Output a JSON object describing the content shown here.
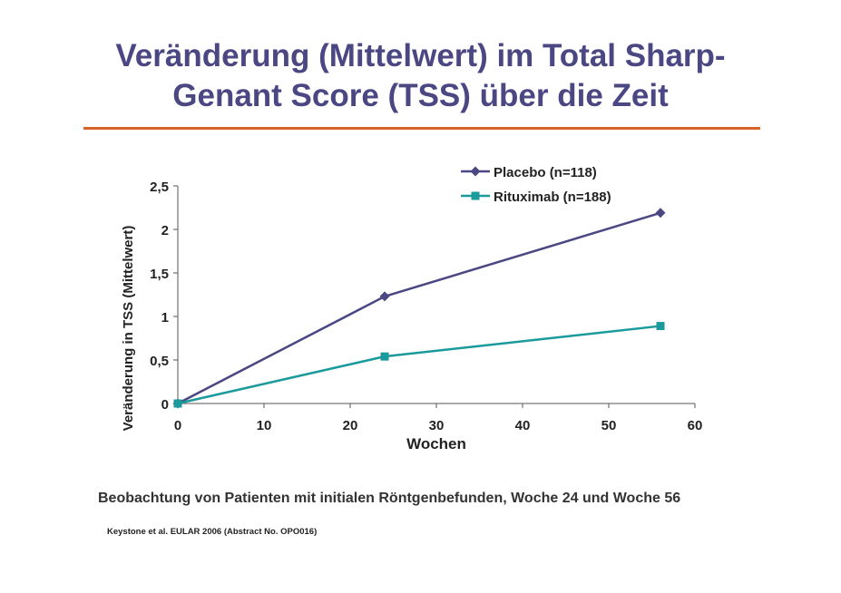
{
  "title": {
    "line1": "Veränderung (Mittelwert) im Total Sharp-",
    "line2": "Genant Score (TSS) über die Zeit"
  },
  "colors": {
    "title": "#4b4783",
    "rule": "#d9622b",
    "placebo": "#4b4783",
    "rituximab": "#1a9a9a"
  },
  "chart_data": {
    "type": "line",
    "title": "",
    "xlabel": "Wochen",
    "ylabel": "Veränderung in TSS (Mittelwert)",
    "xlim": [
      0,
      60
    ],
    "ylim": [
      0,
      2.5
    ],
    "x_ticks": [
      "0",
      "10",
      "20",
      "30",
      "40",
      "50",
      "60"
    ],
    "y_ticks": [
      "0",
      "0,5",
      "1",
      "1,5",
      "2",
      "2,5"
    ],
    "grid": false,
    "legend_position": "top-right",
    "series": [
      {
        "name": "Placebo (n=118)",
        "marker": "diamond",
        "x": [
          0,
          24,
          56
        ],
        "y": [
          0,
          1.23,
          2.19
        ]
      },
      {
        "name": "Rituximab (n=188)",
        "marker": "square",
        "x": [
          0,
          24,
          56
        ],
        "y": [
          0,
          0.54,
          0.89
        ]
      }
    ]
  },
  "footnote": "Beobachtung von Patienten mit initialen Röntgenbefunden, Woche 24 und Woche 56",
  "source": "Keystone et al. EULAR 2006 (Abstract No. OPO016)"
}
